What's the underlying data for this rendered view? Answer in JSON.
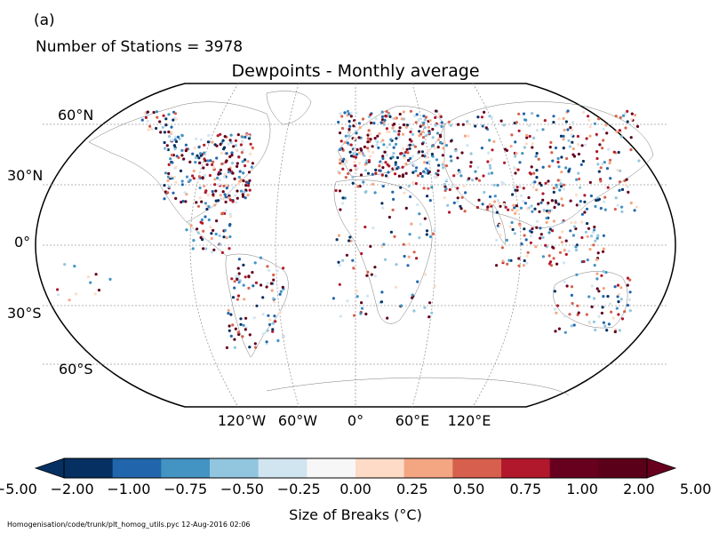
{
  "panel_label": "(a)",
  "stations_label": "Number of Stations = 3978",
  "title": "Dewpoints - Monthly average",
  "lat_labels": [
    "60°N",
    "30°N",
    "0°",
    "30°S",
    "60°S"
  ],
  "lon_labels": [
    "120°W",
    "60°W",
    "0°",
    "60°E",
    "120°E"
  ],
  "colorbar": {
    "title": "Size of Breaks (°C)",
    "tick_labels": [
      "−5.00",
      "−2.00",
      "−1.00",
      "−0.75",
      "−0.50",
      "−0.25",
      "0.00",
      "0.25",
      "0.50",
      "0.75",
      "1.00",
      "2.00",
      "5.00"
    ],
    "colors": [
      "#053061",
      "#2166ac",
      "#4393c3",
      "#92c5de",
      "#d1e5f0",
      "#f7f7f7",
      "#fddbc7",
      "#f4a582",
      "#d6604d",
      "#b2182b",
      "#67001f",
      "#5a0018"
    ],
    "under_color": "#053061",
    "over_color": "#67001f"
  },
  "footer": "Homogenisation/code/trunk/plt_homog_utils.pyc   12-Aug-2016 02:06",
  "projection": "robinson",
  "grid": true
}
